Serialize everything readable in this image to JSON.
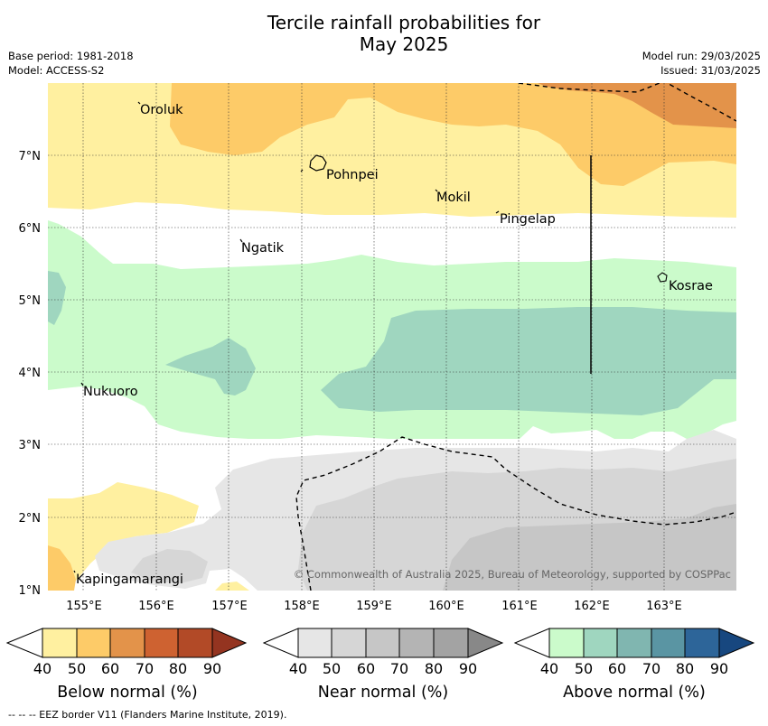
{
  "title_line1": "Tercile rainfall probabilities for",
  "title_line2": "May 2025",
  "meta": {
    "base_period": "Base period: 1981-2018",
    "model": "Model: ACCESS-S2",
    "model_run": "Model run: 29/03/2025",
    "issued": "Issued: 31/03/2025"
  },
  "map": {
    "lon_ticks": [
      "155°E",
      "156°E",
      "157°E",
      "158°E",
      "159°E",
      "160°E",
      "161°E",
      "162°E",
      "163°E"
    ],
    "lat_ticks": [
      "7°N",
      "6°N",
      "5°N",
      "4°N",
      "3°N",
      "2°N",
      "1°N"
    ],
    "places": [
      {
        "name": "Oroluk"
      },
      {
        "name": "Pohnpei"
      },
      {
        "name": "Mokil"
      },
      {
        "name": "Pingelap"
      },
      {
        "name": "Ngatik"
      },
      {
        "name": "Kosrae"
      },
      {
        "name": "Nukuoro"
      },
      {
        "name": "Kapingamarangi"
      }
    ],
    "copyright": "© Commonwealth of Australia 2025, Bureau of Meteorology, supported by COSPPac"
  },
  "legends": [
    {
      "label": "Below normal (%)",
      "ticks": [
        "40",
        "50",
        "60",
        "70",
        "80",
        "90"
      ],
      "colors": [
        "#fff0a0",
        "#fdcb68",
        "#e3934a",
        "#ce6231",
        "#b24a27",
        "#943420"
      ]
    },
    {
      "label": "Near normal (%)",
      "ticks": [
        "40",
        "50",
        "60",
        "70",
        "80",
        "90"
      ],
      "colors": [
        "#e6e6e6",
        "#d6d6d6",
        "#c6c6c6",
        "#b4b4b4",
        "#a3a3a3",
        "#888888"
      ]
    },
    {
      "label": "Above normal (%)",
      "ticks": [
        "40",
        "50",
        "60",
        "70",
        "80",
        "90"
      ],
      "colors": [
        "#cbfbcb",
        "#9fd6bf",
        "#80b6b0",
        "#5a95a3",
        "#2d6599",
        "#17477f"
      ]
    }
  ],
  "footnote": "--  --  -- EEZ border V11 (Flanders Marine Institute, 2019)."
}
